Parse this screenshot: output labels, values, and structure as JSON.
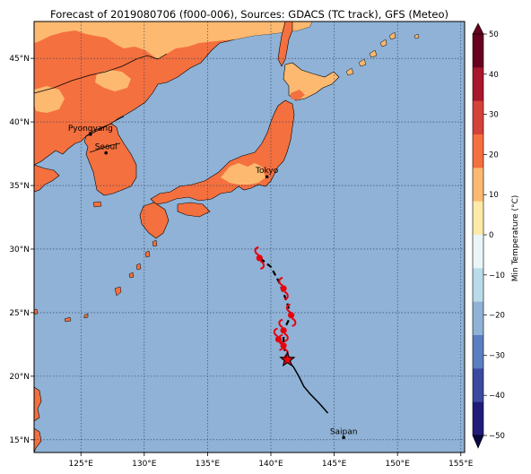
{
  "title": "Forecast of 2019080706 (f000-006), Sources: GDACS (TC track), GFS (Meteo)",
  "map": {
    "lon_range": [
      121.3,
      155.3
    ],
    "lat_range": [
      14.0,
      47.9
    ],
    "lon_ticks": [
      {
        "value": 125,
        "label": "125°E"
      },
      {
        "value": 130,
        "label": "130°E"
      },
      {
        "value": 135,
        "label": "135°E"
      },
      {
        "value": 140,
        "label": "140°E"
      },
      {
        "value": 145,
        "label": "145°E"
      },
      {
        "value": 150,
        "label": "150°E"
      },
      {
        "value": 155,
        "label": "155°E"
      }
    ],
    "lat_ticks": [
      {
        "value": 15,
        "label": "15°N"
      },
      {
        "value": 20,
        "label": "20°N"
      },
      {
        "value": 25,
        "label": "25°N"
      },
      {
        "value": 30,
        "label": "30°N"
      },
      {
        "value": 35,
        "label": "35°N"
      },
      {
        "value": 40,
        "label": "40°N"
      },
      {
        "value": 45,
        "label": "45°N"
      }
    ],
    "cities": [
      {
        "name": "Pyongyang",
        "lon": 125.75,
        "lat": 39.03
      },
      {
        "name": "Seoul",
        "lon": 126.98,
        "lat": 37.57
      },
      {
        "name": "Tokyo",
        "lon": 139.69,
        "lat": 35.69
      },
      {
        "name": "Saipan",
        "lon": 145.75,
        "lat": 15.18
      }
    ],
    "current_position": {
      "lon": 141.3,
      "lat": 21.3
    },
    "forecast_track": [
      [
        141.3,
        21.3
      ],
      [
        141.0,
        22.4
      ],
      [
        141.0,
        23.6
      ],
      [
        141.6,
        24.8
      ],
      [
        141.2,
        26.0
      ],
      [
        140.7,
        27.3
      ],
      [
        140.0,
        28.6
      ],
      [
        139.0,
        29.4
      ]
    ],
    "past_track": [
      [
        144.5,
        17.1
      ],
      [
        143.8,
        17.9
      ],
      [
        143.1,
        18.6
      ],
      [
        142.6,
        19.2
      ],
      [
        142.2,
        20.0
      ],
      [
        141.8,
        20.7
      ],
      [
        141.3,
        21.3
      ]
    ],
    "storm_symbols": [
      {
        "lon": 141.0,
        "lat": 22.4
      },
      {
        "lon": 140.6,
        "lat": 22.9
      },
      {
        "lon": 141.0,
        "lat": 23.6
      },
      {
        "lon": 141.6,
        "lat": 24.8
      },
      {
        "lon": 141.0,
        "lat": 26.9
      },
      {
        "lon": 139.1,
        "lat": 29.3
      }
    ],
    "colors": {
      "ocean": "#8fb2d6",
      "land_warm": "#f4703f",
      "land_mild": "#fdb970",
      "track": "#000000",
      "storm": "#e8000b"
    }
  },
  "colorbar": {
    "label": "Min Temperature (°C)",
    "ticks": [
      "50",
      "40",
      "30",
      "20",
      "10",
      "0",
      "−10",
      "−20",
      "−30",
      "−40",
      "−50"
    ],
    "colors": [
      "#67001f",
      "#a8172b",
      "#d6413a",
      "#f4703f",
      "#fdb970",
      "#fee9a8",
      "#e9f5f9",
      "#b9dbea",
      "#8fb2d6",
      "#5a7ec0",
      "#3c49a0",
      "#1f1c7a"
    ]
  }
}
